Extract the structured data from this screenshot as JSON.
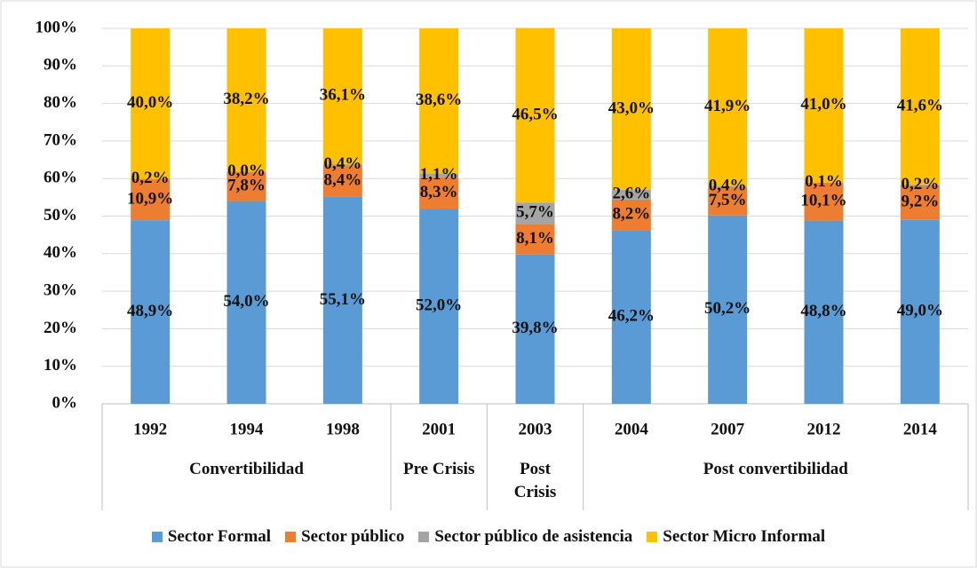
{
  "chart_data": {
    "type": "stacked-bar",
    "categories": [
      "1992",
      "1994",
      "1998",
      "2001",
      "2003",
      "2004",
      "2007",
      "2012",
      "2014"
    ],
    "groups": [
      {
        "label": "Convertibilidad",
        "span": 3
      },
      {
        "label": "Pre Crisis",
        "span": 1
      },
      {
        "label": "Post Crisis",
        "span": 1
      },
      {
        "label": "Post convertibilidad",
        "span": 4
      }
    ],
    "series": [
      {
        "name": "Sector Formal",
        "color": "#5b9bd5",
        "values": [
          48.9,
          54.0,
          55.1,
          52.0,
          39.8,
          46.2,
          50.2,
          48.8,
          49.0
        ],
        "value_labels": [
          "48,9%",
          "54,0%",
          "55,1%",
          "52,0%",
          "39,8%",
          "46,2%",
          "50,2%",
          "48,8%",
          "49,0%"
        ]
      },
      {
        "name": "Sector público",
        "color": "#ed7d31",
        "values": [
          10.9,
          7.8,
          8.4,
          8.3,
          8.1,
          8.2,
          7.5,
          10.1,
          9.2
        ],
        "value_labels": [
          "10,9%",
          "7,8%",
          "8,4%",
          "8,3%",
          "8,1%",
          "8,2%",
          "7,5%",
          "10,1%",
          "9,2%"
        ]
      },
      {
        "name": "Sector público de asistencia",
        "color": "#a5a5a5",
        "values": [
          0.2,
          0.0,
          0.4,
          1.1,
          5.7,
          2.6,
          0.4,
          0.1,
          0.2
        ],
        "value_labels": [
          "0,2%",
          "0,0%",
          "0,4%",
          "1,1%",
          "5,7%",
          "2,6%",
          "0,4%",
          "0,1%",
          "0,2%"
        ]
      },
      {
        "name": "Sector Micro Informal",
        "color": "#ffc000",
        "values": [
          40.0,
          38.2,
          36.1,
          38.6,
          46.5,
          43.0,
          41.9,
          41.0,
          41.6
        ],
        "value_labels": [
          "40,0%",
          "38,2%",
          "36,1%",
          "38,6%",
          "46,5%",
          "43,0%",
          "41,9%",
          "41,0%",
          "41,6%"
        ]
      }
    ],
    "ylim": [
      0,
      100
    ],
    "yticks": [
      {
        "value": 0,
        "label": "0%"
      },
      {
        "value": 10,
        "label": "10%"
      },
      {
        "value": 20,
        "label": "20%"
      },
      {
        "value": 30,
        "label": "30%"
      },
      {
        "value": 40,
        "label": "40%"
      },
      {
        "value": 50,
        "label": "50%"
      },
      {
        "value": 60,
        "label": "60%"
      },
      {
        "value": 70,
        "label": "70%"
      },
      {
        "value": 80,
        "label": "80%"
      },
      {
        "value": 90,
        "label": "90%"
      },
      {
        "value": 100,
        "label": "100%"
      }
    ],
    "grid": true
  }
}
